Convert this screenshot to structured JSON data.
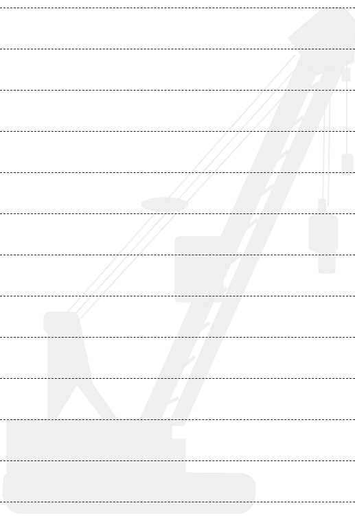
{
  "page": {
    "kind": "dashed-ruled-notepaper",
    "line_count": 13
  },
  "watermark": {
    "subject": "crawler-crane-silhouette",
    "color": "#efefef"
  },
  "colors": {
    "background": "#ffffff",
    "rule": "#1a1a1a"
  }
}
